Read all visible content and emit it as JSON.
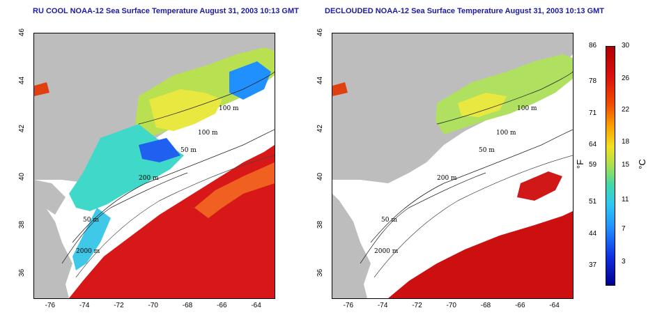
{
  "panels": [
    {
      "title": "RU COOL NOAA-12 Sea Surface Temperature August 31, 2003 10:13 GMT",
      "contour_labels": [
        "100 m",
        "100 m",
        "50 m",
        "200 m",
        "50 m",
        "2000 m"
      ]
    },
    {
      "title": "DECLOUDED NOAA-12 Sea Surface Temperature August 31, 2003 10:13 GMT",
      "contour_labels": [
        "100 m",
        "100 m",
        "50 m",
        "200 m",
        "50 m",
        "2000 m"
      ]
    }
  ],
  "axes": {
    "lat_ticks": [
      "46",
      "44",
      "42",
      "40",
      "38",
      "36"
    ],
    "lon_ticks": [
      "-76",
      "-74",
      "-72",
      "-70",
      "-68",
      "-66",
      "-64"
    ],
    "lat_range": [
      35,
      46
    ],
    "lon_range": [
      -77,
      -63
    ]
  },
  "colorbar": {
    "fahrenheit_ticks": [
      "86",
      "78",
      "71",
      "64",
      "59",
      "51",
      "44",
      "37"
    ],
    "celsius_ticks": [
      "30",
      "26",
      "22",
      "18",
      "15",
      "11",
      "7",
      "3"
    ],
    "fahrenheit_unit": "°F",
    "celsius_unit": "°C",
    "colors": [
      "#b00000",
      "#f04a00",
      "#f8a000",
      "#f0e020",
      "#a8e050",
      "#40d8a8",
      "#30c8f0",
      "#2090ff",
      "#000090"
    ]
  }
}
